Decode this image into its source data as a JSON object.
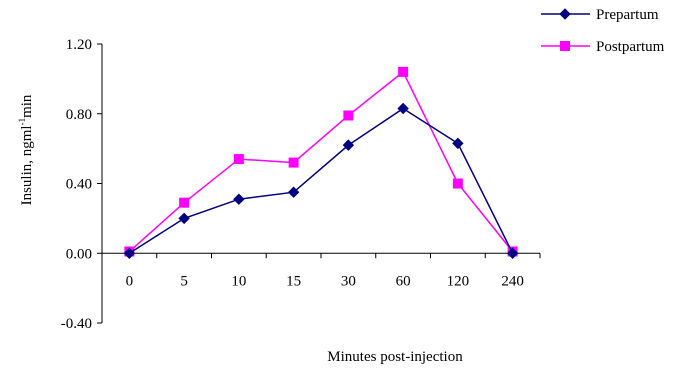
{
  "chart_data": {
    "type": "line",
    "title": "",
    "xlabel": "Minutes post-injection",
    "ylabel": "Insulin, ngml",
    "ylabel_sup": "-1",
    "ylabel_tail": "min",
    "categories": [
      "0",
      "5",
      "10",
      "15",
      "30",
      "60",
      "120",
      "240"
    ],
    "ylim": [
      -0.4,
      1.2
    ],
    "yticks": [
      -0.4,
      0.0,
      0.4,
      0.8,
      1.2
    ],
    "ytick_labels": [
      "-0.40",
      "0.00",
      "0.40",
      "0.80",
      "1.20"
    ],
    "grid": false,
    "legend_position": "top-right",
    "series": [
      {
        "name": "Prepartum",
        "marker": "diamond",
        "color": "#000080",
        "values": [
          0.0,
          0.2,
          0.31,
          0.35,
          0.62,
          0.83,
          0.63,
          0.0
        ]
      },
      {
        "name": "Postpartum",
        "marker": "square",
        "color": "#FF00FF",
        "values": [
          0.01,
          0.29,
          0.54,
          0.52,
          0.79,
          1.04,
          0.4,
          0.01
        ]
      }
    ]
  }
}
